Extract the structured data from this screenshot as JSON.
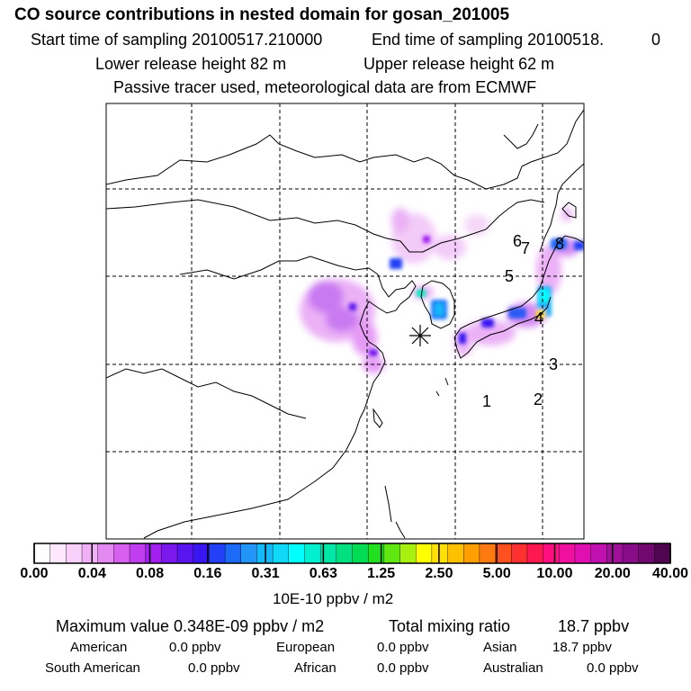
{
  "header": {
    "title": "CO  source contributions in nested domain for gosan_201005",
    "start_sampling": "Start time of sampling 20100517.210000",
    "end_sampling": "End time of sampling 20100518.",
    "end_sampling_suffix": "0",
    "lower_release": "Lower release height   82 m",
    "upper_release": "Upper release height   62 m",
    "tracer_note": "Passive tracer used, meteorological data are from ECMWF"
  },
  "map": {
    "receptor_marker": "asterisk",
    "station_labels": [
      "1",
      "2",
      "3",
      "4",
      "5",
      "6",
      "7",
      "8"
    ]
  },
  "colorbar": {
    "ticks": [
      "0.00",
      "0.04",
      "0.08",
      "0.16",
      "0.31",
      "0.63",
      "1.25",
      "2.50",
      "5.00",
      "10.00",
      "20.00",
      "40.00"
    ],
    "unit": "10E-10 ppbv / m2",
    "colors": [
      "#ffffff",
      "#fde8fd",
      "#f8d0fa",
      "#f0b0f6",
      "#e488f2",
      "#d860f0",
      "#c13ef0",
      "#a21ff0",
      "#7a18ee",
      "#5a14f0",
      "#3a16f2",
      "#2240f5",
      "#1c6af8",
      "#2196f8",
      "#14baf8",
      "#10d8f8",
      "#00ffff",
      "#00f0d0",
      "#00e8a8",
      "#00e080",
      "#00dd55",
      "#20e020",
      "#60e810",
      "#a8f010",
      "#ffff00",
      "#ffe000",
      "#ffc000",
      "#ffa000",
      "#ff7a10",
      "#ff5020",
      "#ff3030",
      "#ff1850",
      "#ff1080",
      "#f010a0",
      "#e010b0",
      "#c010b0",
      "#a01098",
      "#880c88",
      "#700870",
      "#500550"
    ]
  },
  "summary": {
    "max_value_label": "Maximum value  0.348E-09 ppbv / m2",
    "total_label": "Total mixing ratio",
    "total_value": "18.7 ppbv"
  },
  "regions": [
    {
      "name": "American",
      "value": "0.0 ppbv"
    },
    {
      "name": "European",
      "value": "0.0 ppbv"
    },
    {
      "name": "Asian",
      "value": "18.7 ppbv"
    },
    {
      "name": "South American",
      "value": "0.0 ppbv"
    },
    {
      "name": "African",
      "value": "0.0 ppbv"
    },
    {
      "name": "Australian",
      "value": "0.0 ppbv"
    }
  ]
}
